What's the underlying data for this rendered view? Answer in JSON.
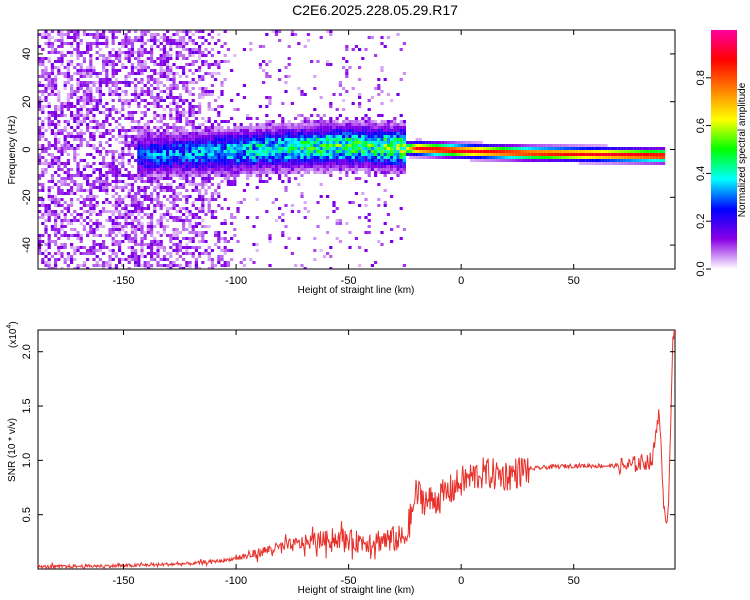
{
  "page_title": "C2E6.2025.228.05.29.R17",
  "chart_data": [
    {
      "type": "heatmap",
      "xlabel": "Height of straight line (km)",
      "ylabel": "Frequency (Hz)",
      "xlim": [
        -188,
        95
      ],
      "ylim": [
        -50,
        50
      ],
      "x_ticks": [
        -150,
        -100,
        -50,
        0,
        50
      ],
      "y_ticks": [
        -40,
        -20,
        0,
        20,
        40
      ],
      "colorbar": {
        "label": "Normalized spectral amplitude",
        "range": [
          0,
          1
        ],
        "ticks": [
          0.0,
          0.2,
          0.4,
          0.6,
          0.8
        ],
        "colors": [
          "#ffffff",
          "#8a00e6",
          "#0000ff",
          "#00ffff",
          "#00ff00",
          "#ffff00",
          "#ff8000",
          "#ff0000",
          "#ff00a0"
        ]
      },
      "ridge": [
        {
          "x": -145,
          "f": -2,
          "amp": 0.3
        },
        {
          "x": -120,
          "f": -1,
          "amp": 0.35
        },
        {
          "x": -100,
          "f": 0,
          "amp": 0.4
        },
        {
          "x": -80,
          "f": 1,
          "amp": 0.45
        },
        {
          "x": -60,
          "f": 2,
          "amp": 0.5
        },
        {
          "x": -40,
          "f": 2,
          "amp": 0.5
        },
        {
          "x": -25,
          "f": 1,
          "amp": 0.6
        },
        {
          "x": -20,
          "f": 1,
          "amp": 0.9
        },
        {
          "x": 0,
          "f": 0,
          "amp": 0.9
        },
        {
          "x": 30,
          "f": -1,
          "amp": 0.85
        },
        {
          "x": 60,
          "f": -1.5,
          "amp": 0.9
        },
        {
          "x": 90,
          "f": -2,
          "amp": 0.9
        }
      ]
    },
    {
      "type": "line",
      "xlabel": "Height of straight line (km)",
      "ylabel": "SNR (10 * v/v)",
      "y_multiplier": "(x10",
      "y_multiplier_exp": "4",
      "xlim": [
        -188,
        95
      ],
      "ylim": [
        0,
        2.2
      ],
      "x_ticks": [
        -150,
        -100,
        -50,
        0,
        50
      ],
      "y_ticks": [
        "0.5",
        "1.0",
        "1.5",
        "2.0"
      ],
      "color": "#e8302a",
      "series": [
        {
          "values": [
            [
              -188,
              0.02
            ],
            [
              -150,
              0.03
            ],
            [
              -120,
              0.05
            ],
            [
              -105,
              0.08
            ],
            [
              -95,
              0.12
            ],
            [
              -85,
              0.18
            ],
            [
              -75,
              0.22
            ],
            [
              -65,
              0.26
            ],
            [
              -55,
              0.28
            ],
            [
              -45,
              0.25
            ],
            [
              -35,
              0.27
            ],
            [
              -25,
              0.28
            ],
            [
              -22,
              0.5
            ],
            [
              -20,
              0.7
            ],
            [
              -15,
              0.62
            ],
            [
              -10,
              0.65
            ],
            [
              -5,
              0.72
            ],
            [
              0,
              0.8
            ],
            [
              5,
              0.85
            ],
            [
              10,
              0.88
            ],
            [
              20,
              0.86
            ],
            [
              30,
              0.92
            ],
            [
              40,
              0.94
            ],
            [
              50,
              0.95
            ],
            [
              60,
              0.95
            ],
            [
              70,
              0.95
            ],
            [
              75,
              0.95
            ],
            [
              80,
              0.98
            ],
            [
              85,
              1.0
            ],
            [
              88,
              1.5
            ],
            [
              90,
              0.5
            ],
            [
              92,
              0.5
            ],
            [
              94,
              2.15
            ]
          ]
        }
      ]
    }
  ]
}
